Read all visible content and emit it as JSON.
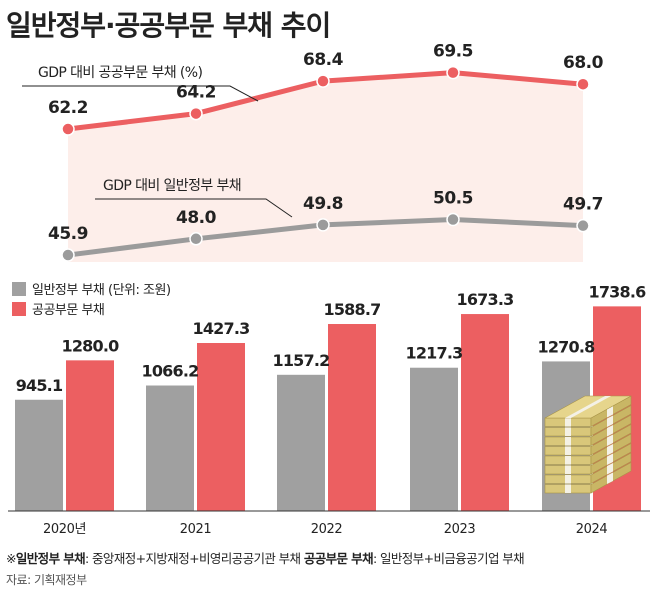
{
  "title": "일반정부·공공부문 부채 추이",
  "chart_data": [
    {
      "type": "line",
      "categories": [
        "2020년",
        "2021",
        "2022",
        "2023",
        "2024"
      ],
      "series": [
        {
          "name": "GDP 대비 공공부문 부채 (%)",
          "values": [
            62.2,
            64.2,
            68.4,
            69.5,
            68.0
          ],
          "labels": [
            "62.2",
            "64.2",
            "68.4",
            "69.5",
            "68.0"
          ],
          "color": "#ec5f61"
        },
        {
          "name": "GDP 대비 일반정부 부채",
          "values": [
            45.9,
            48.0,
            49.8,
            50.5,
            49.7
          ],
          "labels": [
            "45.9",
            "48.0",
            "49.8",
            "50.5",
            "49.7"
          ],
          "color": "#9b9b9b"
        }
      ]
    },
    {
      "type": "bar",
      "categories": [
        "2020년",
        "2021",
        "2022",
        "2023",
        "2024"
      ],
      "legend": [
        "일반정부 부채 (단위: 조원)",
        "공공부문 부채"
      ],
      "series": [
        {
          "name": "일반정부 부채",
          "values": [
            945.1,
            1066.2,
            1157.2,
            1217.3,
            1270.8
          ],
          "labels": [
            "945.1",
            "1066.2",
            "1157.2",
            "1217.3",
            "1270.8"
          ],
          "color": "#a0a0a0"
        },
        {
          "name": "공공부문 부채",
          "values": [
            1280.0,
            1427.3,
            1588.7,
            1673.3,
            1738.6
          ],
          "labels": [
            "1280.0",
            "1427.3",
            "1588.7",
            "1673.3",
            "1738.6"
          ],
          "color": "#ec5f61"
        }
      ]
    }
  ],
  "footnote": {
    "mark": "※",
    "general_term": "일반정부 부채",
    "general_def": ": 중앙재정+지방재정+비영리공공기관 부채",
    "public_term": "공공부문 부채",
    "public_def": ": 일반정부+비금융공기업 부채"
  },
  "source": "자료: 기획재정부",
  "colors": {
    "red": "#ec5f61",
    "gray": "#9b9b9b",
    "area": "#fdeeea",
    "dark": "#222222"
  }
}
